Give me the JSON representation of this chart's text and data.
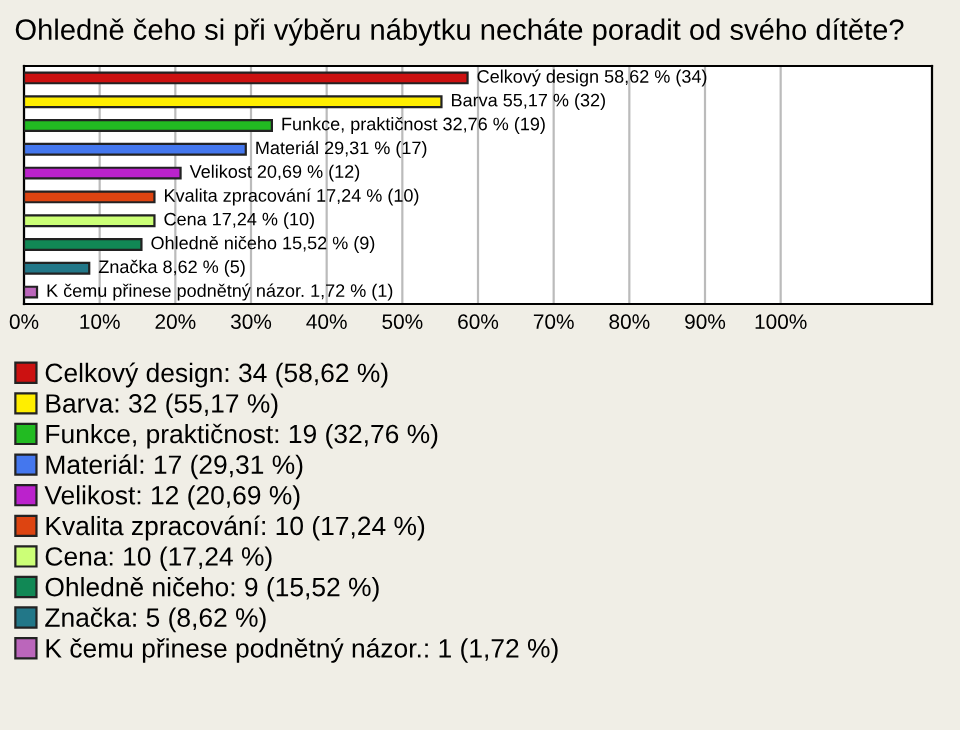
{
  "chart_data": {
    "type": "bar",
    "orientation": "horizontal",
    "title": "Ohledně čeho si při výběru nábytku necháte poradit od svého dítěte?",
    "categories": [
      null,
      null,
      null,
      null,
      null,
      null,
      null,
      null,
      null,
      null
    ],
    "series": [
      {
        "name": "Celkový design: 34 (58,62 %)",
        "color": "#cc1111",
        "values": [
          58.62,
          null,
          null,
          null,
          null,
          null,
          null,
          null,
          null,
          null
        ],
        "value_labels": [
          "Celkový design 58,62 % (34)",
          null,
          null,
          null,
          null,
          null,
          null,
          null,
          null,
          null
        ]
      },
      {
        "name": "Barva: 32 (55,17 %)",
        "color": "#ffee00",
        "values": [
          null,
          55.17,
          null,
          null,
          null,
          null,
          null,
          null,
          null,
          null
        ],
        "value_labels": [
          null,
          "Barva 55,17 % (32)",
          null,
          null,
          null,
          null,
          null,
          null,
          null,
          null
        ]
      },
      {
        "name": "Funkce, praktičnost: 19 (32,76 %)",
        "color": "#22bb22",
        "values": [
          null,
          null,
          32.76,
          null,
          null,
          null,
          null,
          null,
          null,
          null
        ],
        "value_labels": [
          null,
          null,
          "Funkce, praktičnost 32,76 % (19)",
          null,
          null,
          null,
          null,
          null,
          null,
          null
        ]
      },
      {
        "name": "Materiál: 17 (29,31 %)",
        "color": "#4477ee",
        "values": [
          null,
          null,
          null,
          29.31,
          null,
          null,
          null,
          null,
          null,
          null
        ],
        "value_labels": [
          null,
          null,
          null,
          "Materiál 29,31 % (17)",
          null,
          null,
          null,
          null,
          null,
          null
        ]
      },
      {
        "name": "Velikost: 12 (20,69 %)",
        "color": "#bb22cc",
        "values": [
          null,
          null,
          null,
          null,
          20.69,
          null,
          null,
          null,
          null,
          null
        ],
        "value_labels": [
          null,
          null,
          null,
          null,
          "Velikost 20,69 % (12)",
          null,
          null,
          null,
          null,
          null
        ]
      },
      {
        "name": "Kvalita zpracování: 10 (17,24 %)",
        "color": "#dd4411",
        "values": [
          null,
          null,
          null,
          null,
          null,
          17.24,
          null,
          null,
          null,
          null
        ],
        "value_labels": [
          null,
          null,
          null,
          null,
          null,
          "Kvalita zpracování 17,24 % (10)",
          null,
          null,
          null,
          null
        ]
      },
      {
        "name": "Cena: 10 (17,24 %)",
        "color": "#ccff77",
        "values": [
          null,
          null,
          null,
          null,
          null,
          null,
          17.24,
          null,
          null,
          null
        ],
        "value_labels": [
          null,
          null,
          null,
          null,
          null,
          null,
          "Cena 17,24 % (10)",
          null,
          null,
          null
        ]
      },
      {
        "name": "Ohledně ničeho: 9 (15,52 %)",
        "color": "#118855",
        "values": [
          null,
          null,
          null,
          null,
          null,
          null,
          null,
          15.52,
          null,
          null
        ],
        "value_labels": [
          null,
          null,
          null,
          null,
          null,
          null,
          null,
          "Ohledně ničeho 15,52 % (9)",
          null,
          null
        ]
      },
      {
        "name": "Značka: 5 (8,62 %)",
        "color": "#227788",
        "values": [
          null,
          null,
          null,
          null,
          null,
          null,
          null,
          null,
          8.62,
          null
        ],
        "value_labels": [
          null,
          null,
          null,
          null,
          null,
          null,
          null,
          null,
          "Značka 8,62 % (5)",
          null
        ]
      },
      {
        "name": "K čemu přinese podnětný názor.: 1 (1,72 %)",
        "color": "#bb66bb",
        "values": [
          null,
          null,
          null,
          null,
          null,
          null,
          null,
          null,
          null,
          1.72
        ],
        "value_labels": [
          null,
          null,
          null,
          null,
          null,
          null,
          null,
          null,
          null,
          "K čemu přinese podnětný názor. 1,72 % (1)"
        ]
      }
    ],
    "xlim": [
      0,
      120
    ],
    "xticks": [
      {
        "value": 0,
        "label": "0%"
      },
      {
        "value": 10,
        "label": "10%"
      },
      {
        "value": 20,
        "label": "20%"
      },
      {
        "value": 30,
        "label": "30%"
      },
      {
        "value": 40,
        "label": "40%"
      },
      {
        "value": 50,
        "label": "50%"
      },
      {
        "value": 60,
        "label": "60%"
      },
      {
        "value": 70,
        "label": "70%"
      },
      {
        "value": 80,
        "label": "80%"
      },
      {
        "value": 90,
        "label": "90%"
      },
      {
        "value": 100,
        "label": "100%"
      }
    ],
    "grid": "x",
    "legend": "bottom",
    "tick_labels": "x"
  }
}
